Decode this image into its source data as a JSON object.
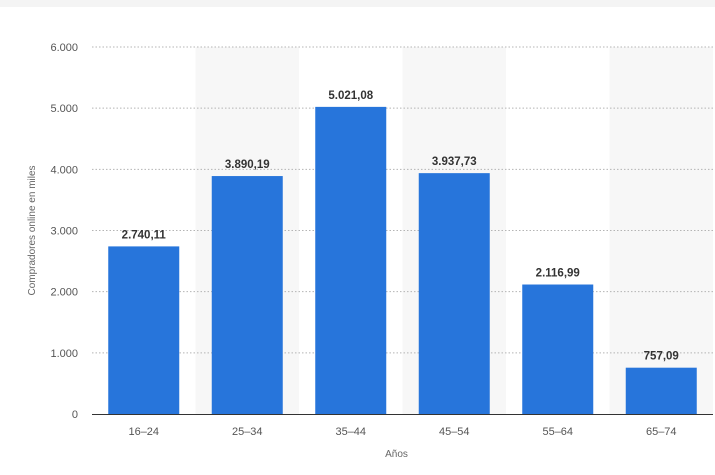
{
  "chart_data": {
    "type": "bar",
    "categories": [
      "16-24",
      "25-34",
      "35-44",
      "45-54",
      "55-64",
      "65-74"
    ],
    "values": [
      2740.11,
      3890.19,
      5021.08,
      3937.73,
      2116.99,
      757.09
    ],
    "value_labels": [
      "2.740,11",
      "3.890,19",
      "5.021,08",
      "3.937,73",
      "2.116,99",
      "757,09"
    ],
    "title": "",
    "xlabel": "Años",
    "ylabel": "Compradores online en miles",
    "ylim": [
      0,
      6000
    ],
    "yticks": [
      0,
      1000,
      2000,
      3000,
      4000,
      5000,
      6000
    ],
    "ytick_labels": [
      "0",
      "1.000",
      "2.000",
      "3.000",
      "4.000",
      "5.000",
      "6.000"
    ],
    "grid": true,
    "bar_color": "#2775db"
  }
}
